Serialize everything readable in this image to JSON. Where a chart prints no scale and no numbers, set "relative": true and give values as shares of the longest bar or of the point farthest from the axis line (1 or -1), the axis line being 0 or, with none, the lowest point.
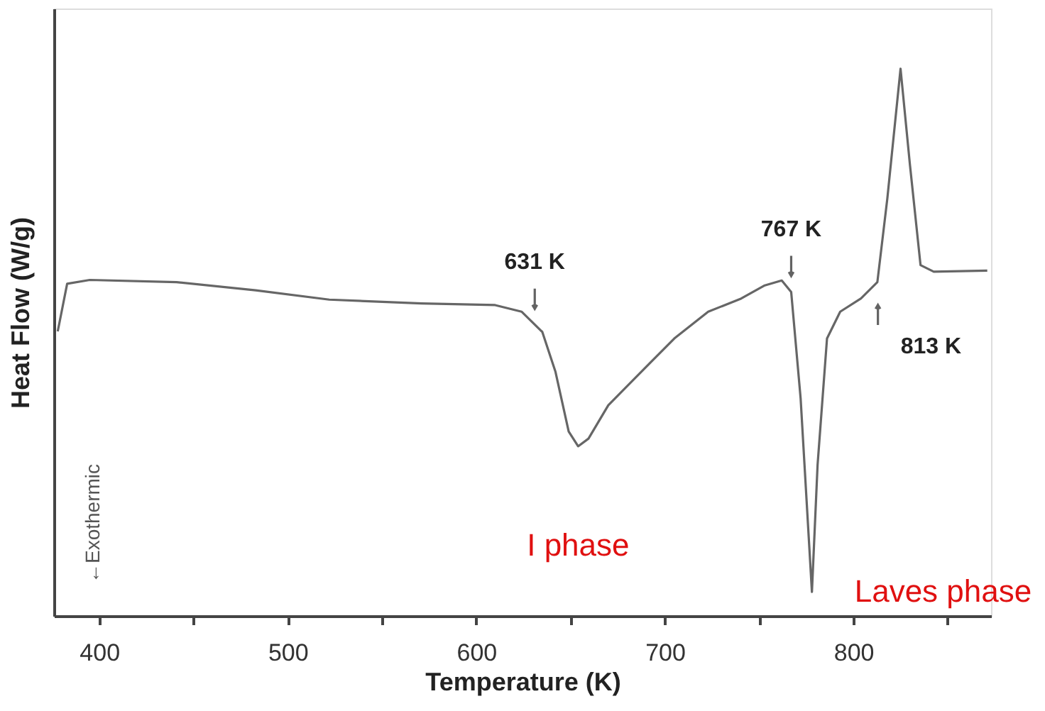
{
  "chart_data": {
    "type": "line",
    "relative": true,
    "xlabel": "Temperature (K)",
    "ylabel": "Heat Flow (W/g)",
    "xlim": [
      376,
      873
    ],
    "xticks": [
      400,
      {
        "value": 450,
        "label": null
      },
      500,
      {
        "value": 550,
        "label": null
      },
      600,
      {
        "value": 650,
        "label": null
      },
      700,
      {
        "value": 750,
        "label": null
      },
      800,
      {
        "value": 850,
        "label": null
      }
    ],
    "grid": false,
    "marker": "none",
    "line_style": "solid",
    "series": [
      {
        "color": "#666666",
        "x": [
          378,
          383,
          395,
          441,
          483,
          522,
          571,
          610,
          624,
          635,
          642,
          649,
          654,
          659.5,
          670,
          684,
          705,
          723,
          740.5,
          753,
          762,
          767,
          772,
          778,
          781,
          786,
          793,
          804,
          812.7,
          818,
          825,
          830,
          835.6,
          842.6,
          871
        ],
        "values": [
          0.52,
          0.607,
          0.614,
          0.61,
          0.595,
          0.578,
          0.571,
          0.568,
          0.556,
          0.519,
          0.446,
          0.337,
          0.31,
          0.324,
          0.385,
          0.434,
          0.507,
          0.556,
          0.58,
          0.604,
          0.613,
          0.592,
          0.398,
          0.044,
          0.276,
          0.507,
          0.556,
          0.58,
          0.61,
          0.763,
          1,
          0.824,
          0.641,
          0.629,
          0.631
        ]
      }
    ],
    "annotations": [
      {
        "text": "631 K",
        "x": 631,
        "y": 0.53
      },
      {
        "text": "767 K",
        "x": 767,
        "y": 0.59
      },
      {
        "text": "813 K",
        "x": 813,
        "y": 0.61
      },
      {
        "text": "I phase",
        "x": 654,
        "y": 0.31
      },
      {
        "text": "Laves phase",
        "x": 778,
        "y": 0.044
      },
      "←Exothermic"
    ]
  }
}
